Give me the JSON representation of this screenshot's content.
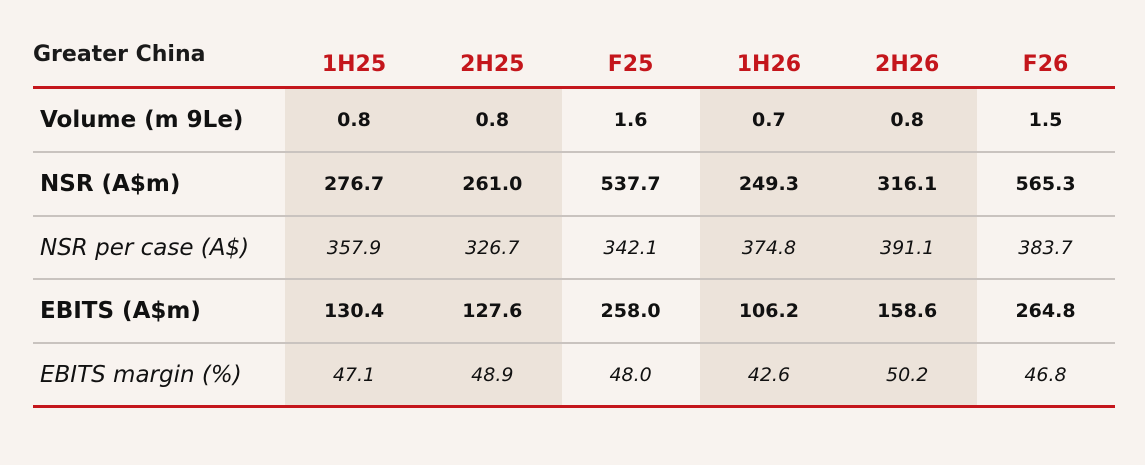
{
  "header": {
    "title": "Greater China",
    "columns": [
      "1H25",
      "2H25",
      "F25",
      "1H26",
      "2H26",
      "F26"
    ]
  },
  "table": {
    "rows": [
      [
        "Volume (m 9Le)",
        "0.8",
        "0.8",
        "1.6",
        "0.7",
        "0.8",
        "1.5"
      ],
      [
        "NSR (A$m)",
        "276.7",
        "261.0",
        "537.7",
        "249.3",
        "316.1",
        "565.3"
      ],
      [
        "NSR per case (A$)",
        "357.9",
        "326.7",
        "342.1",
        "374.8",
        "391.1",
        "383.7"
      ],
      [
        "EBITS (A$m)",
        "130.4",
        "127.6",
        "258.0",
        "106.2",
        "158.6",
        "264.8"
      ],
      [
        "EBITS margin (%)",
        "47.1",
        "48.9",
        "48.0",
        "42.6",
        "50.2",
        "46.8"
      ]
    ]
  }
}
